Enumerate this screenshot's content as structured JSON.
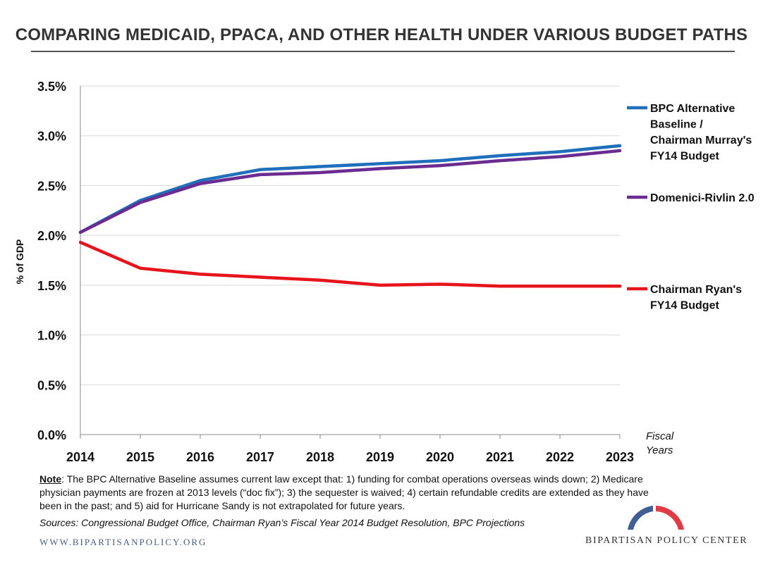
{
  "page": {
    "title": "COMPARING MEDICAID, PPACA, AND OTHER HEALTH UNDER VARIOUS BUDGET PATHS",
    "note_label": "Note",
    "note_text": ": The BPC Alternative Baseline assumes current law except that: 1) funding for combat operations overseas winds down; 2) Medicare physician payments are frozen at 2013 levels (“doc fix”); 3) the sequester is waived; 4) certain refundable credits are extended  as they have been in the past; and 5) aid for Hurricane Sandy is not extrapolated for future years.",
    "sources": "Sources: Congressional Budget Office, Chairman Ryan’s Fiscal Year 2014 Budget Resolution, BPC Projections",
    "website": "WWW.BIPARTISANPOLICY.ORG",
    "org_name": "BIPARTISAN POLICY CENTER"
  },
  "chart_data": {
    "type": "line",
    "title": "COMPARING MEDICAID, PPACA, AND OTHER HEALTH UNDER VARIOUS BUDGET PATHS",
    "ylabel": "% of GDP",
    "xlabel": "Fiscal Years",
    "x": [
      2014,
      2015,
      2016,
      2017,
      2018,
      2019,
      2020,
      2021,
      2022,
      2023
    ],
    "x_tick_labels": [
      "2014",
      "2015",
      "2016",
      "2017",
      "2018",
      "2019",
      "2020",
      "2021",
      "2022",
      "2023"
    ],
    "ylim": [
      0.0,
      3.5
    ],
    "y_ticks": [
      0.0,
      0.5,
      1.0,
      1.5,
      2.0,
      2.5,
      3.0,
      3.5
    ],
    "y_tick_labels": [
      "0.0%",
      "0.5%",
      "1.0%",
      "1.5%",
      "2.0%",
      "2.5%",
      "3.0%",
      "3.5%"
    ],
    "grid": "horizontal",
    "legend_position": "right",
    "series": [
      {
        "name": "BPC Alternative Baseline / Chairman Murray's FY14 Budget",
        "legend_lines": [
          "BPC Alternative",
          "Baseline /",
          "Chairman Murray's",
          "FY14 Budget"
        ],
        "color": "#1f6fba",
        "values": [
          2.03,
          2.35,
          2.55,
          2.66,
          2.69,
          2.72,
          2.75,
          2.8,
          2.84,
          2.9
        ]
      },
      {
        "name": "Domenici-Rivlin 2.0",
        "legend_lines": [
          "Domenici-Rivlin 2.0"
        ],
        "color": "#6a2c91",
        "values": [
          2.03,
          2.33,
          2.52,
          2.61,
          2.63,
          2.67,
          2.7,
          2.75,
          2.79,
          2.85
        ]
      },
      {
        "name": "Chairman Ryan's FY14 Budget",
        "legend_lines": [
          "Chairman Ryan's",
          "FY14 Budget"
        ],
        "color": "#e8141b",
        "values": [
          1.93,
          1.67,
          1.61,
          1.58,
          1.55,
          1.5,
          1.51,
          1.49,
          1.49,
          1.49
        ]
      }
    ]
  }
}
